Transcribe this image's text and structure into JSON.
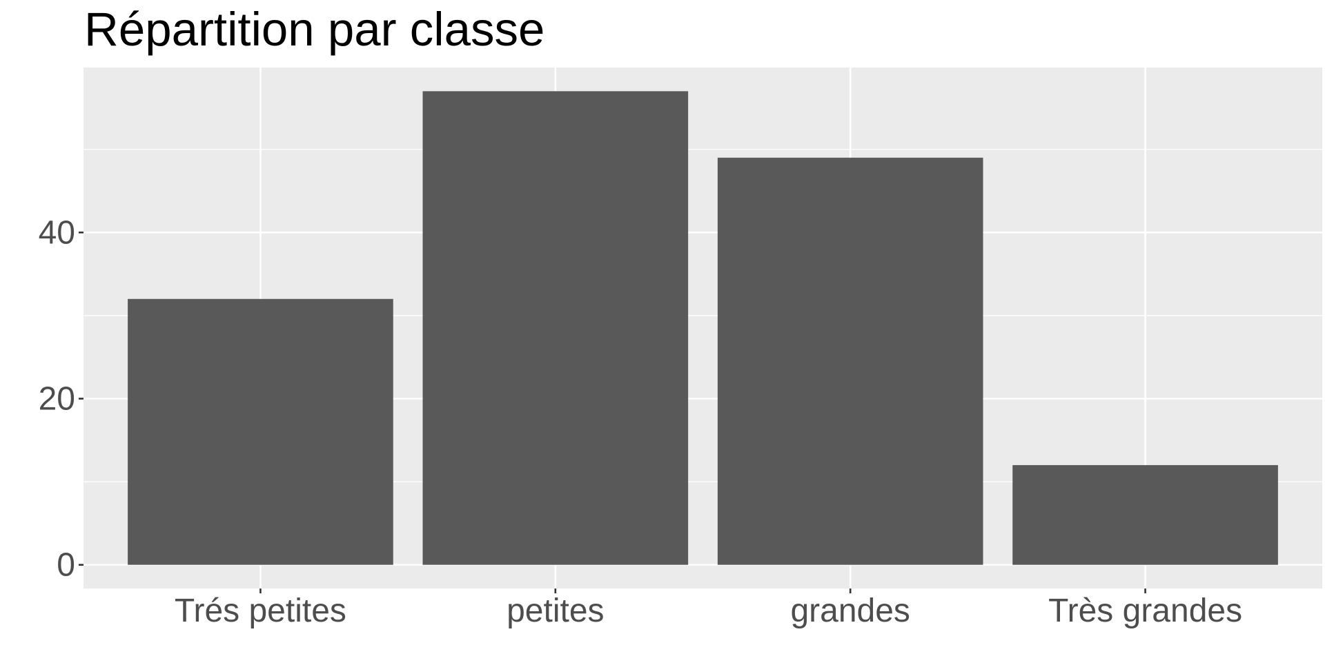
{
  "chart_data": {
    "type": "bar",
    "title": "Répartition par classe",
    "xlabel": "",
    "ylabel": "",
    "categories": [
      "Trés petites",
      "petites",
      "grandes",
      "Très grandes"
    ],
    "values": [
      32,
      57,
      49,
      12
    ],
    "ylim": [
      -2.85,
      59.85
    ],
    "y_ticks": [
      0,
      20,
      40
    ],
    "y_tick_labels": [
      "0",
      "20",
      "40"
    ],
    "y_minor_gridlines": [
      10,
      30,
      50
    ],
    "grid": true,
    "legend": "none",
    "colors": {
      "bar": "#595959",
      "panel_background": "#ebebeb",
      "grid_major": "#ffffff",
      "grid_minor": "#ffffff",
      "tick_mark": "#333333",
      "tick_label": "#4d4d4d",
      "title": "#000000"
    }
  }
}
